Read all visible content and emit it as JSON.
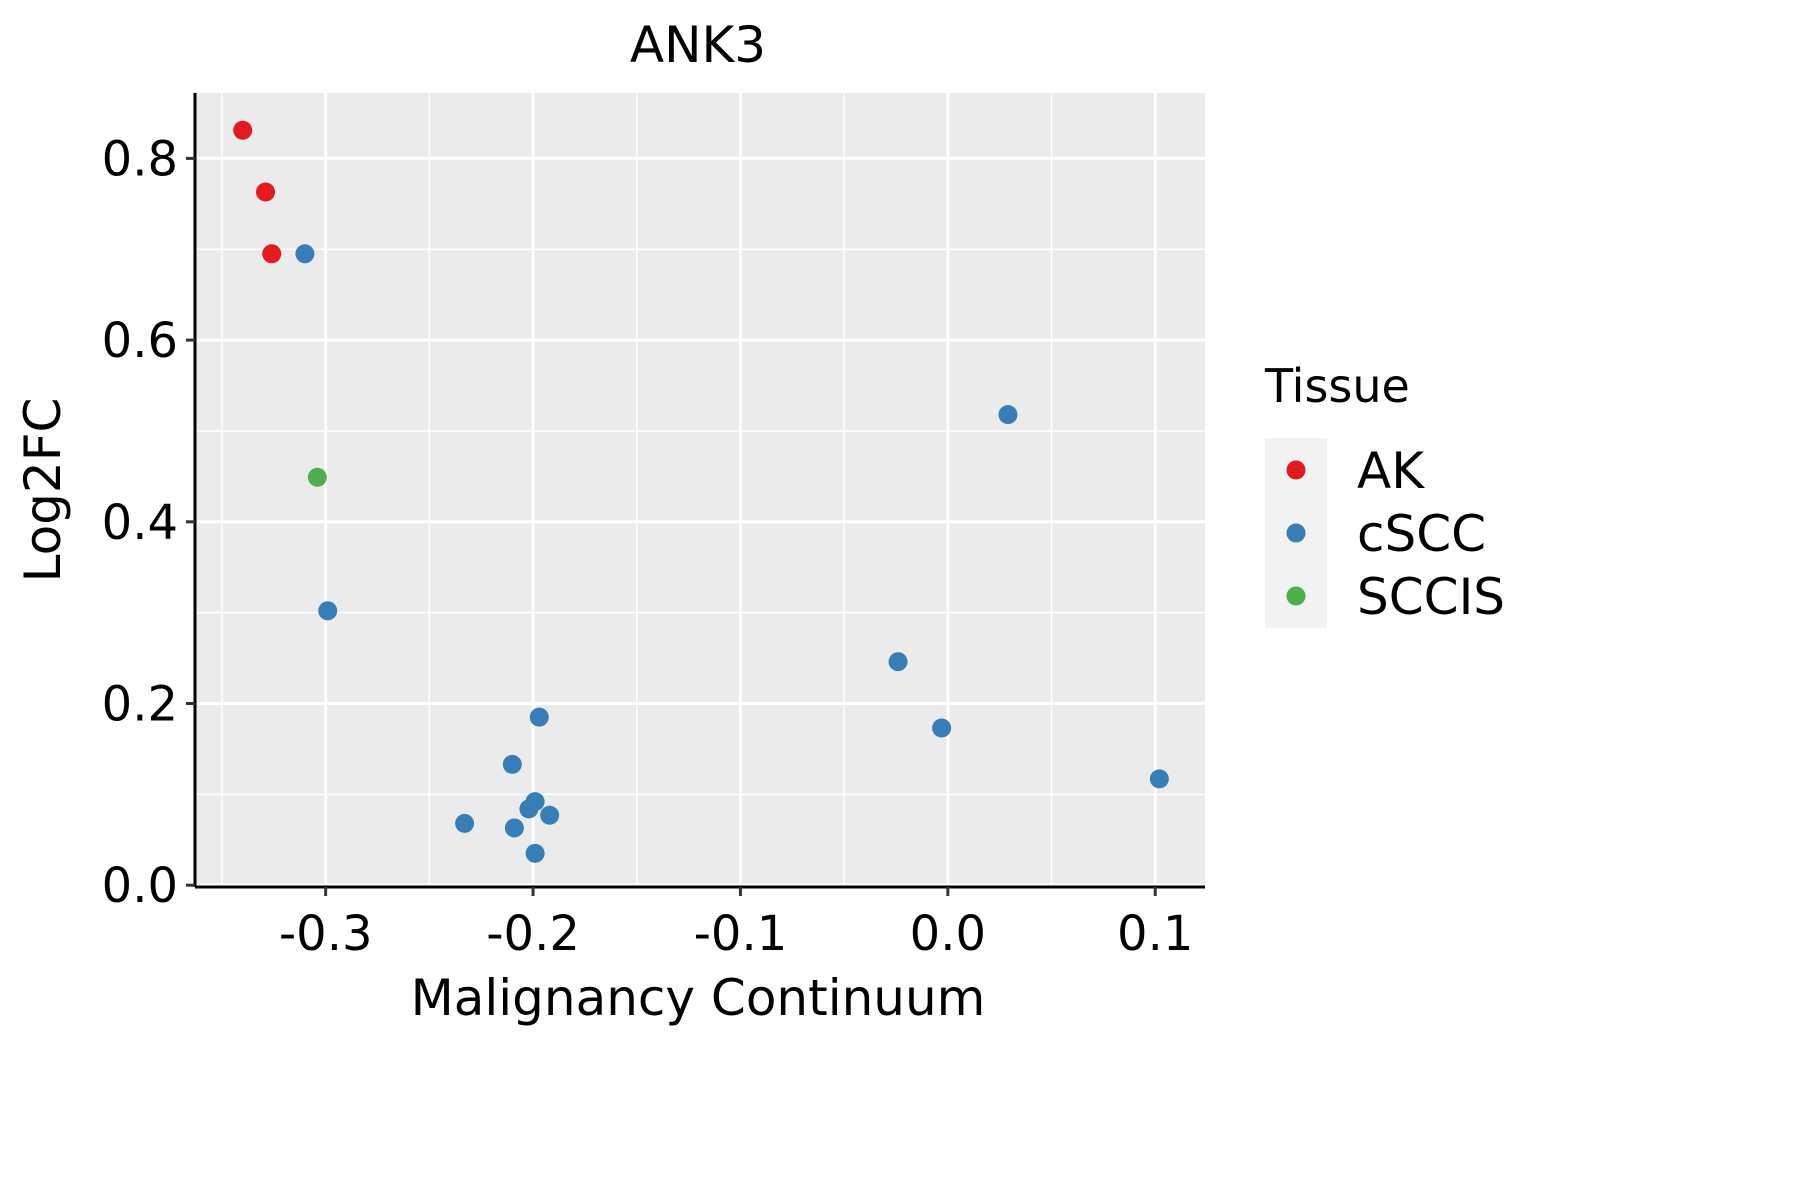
{
  "chart_data": {
    "type": "scatter",
    "title": "ANK3",
    "xlabel": "Malignancy Continuum",
    "ylabel": "Log2FC",
    "xlim": [
      -0.363,
      0.124
    ],
    "ylim": [
      -0.002,
      0.872
    ],
    "xticks": [
      -0.3,
      -0.2,
      -0.1,
      0.0,
      0.1
    ],
    "xtick_labels": [
      "-0.3",
      "-0.2",
      "-0.1",
      "0.0",
      "0.1"
    ],
    "yticks": [
      0.0,
      0.2,
      0.4,
      0.6,
      0.8
    ],
    "ytick_labels": [
      "0.0",
      "0.2",
      "0.4",
      "0.6",
      "0.8"
    ],
    "grid": true,
    "legend": {
      "title": "Tissue",
      "placement": "right"
    },
    "series": [
      {
        "name": "AK",
        "color": "#E41A1C",
        "points": [
          [
            -0.34,
            0.831
          ],
          [
            -0.329,
            0.763
          ],
          [
            -0.326,
            0.695
          ]
        ]
      },
      {
        "name": "cSCC",
        "color": "#377EB8",
        "points": [
          [
            -0.31,
            0.695
          ],
          [
            -0.299,
            0.302
          ],
          [
            0.029,
            0.518
          ],
          [
            -0.024,
            0.246
          ],
          [
            -0.003,
            0.173
          ],
          [
            0.102,
            0.117
          ],
          [
            -0.197,
            0.185
          ],
          [
            -0.21,
            0.133
          ],
          [
            -0.199,
            0.092
          ],
          [
            -0.202,
            0.084
          ],
          [
            -0.192,
            0.077
          ],
          [
            -0.233,
            0.068
          ],
          [
            -0.209,
            0.063
          ],
          [
            -0.199,
            0.035
          ]
        ]
      },
      {
        "name": "SCCIS",
        "color": "#4DAF4A",
        "points": [
          [
            -0.304,
            0.449
          ]
        ]
      }
    ]
  }
}
